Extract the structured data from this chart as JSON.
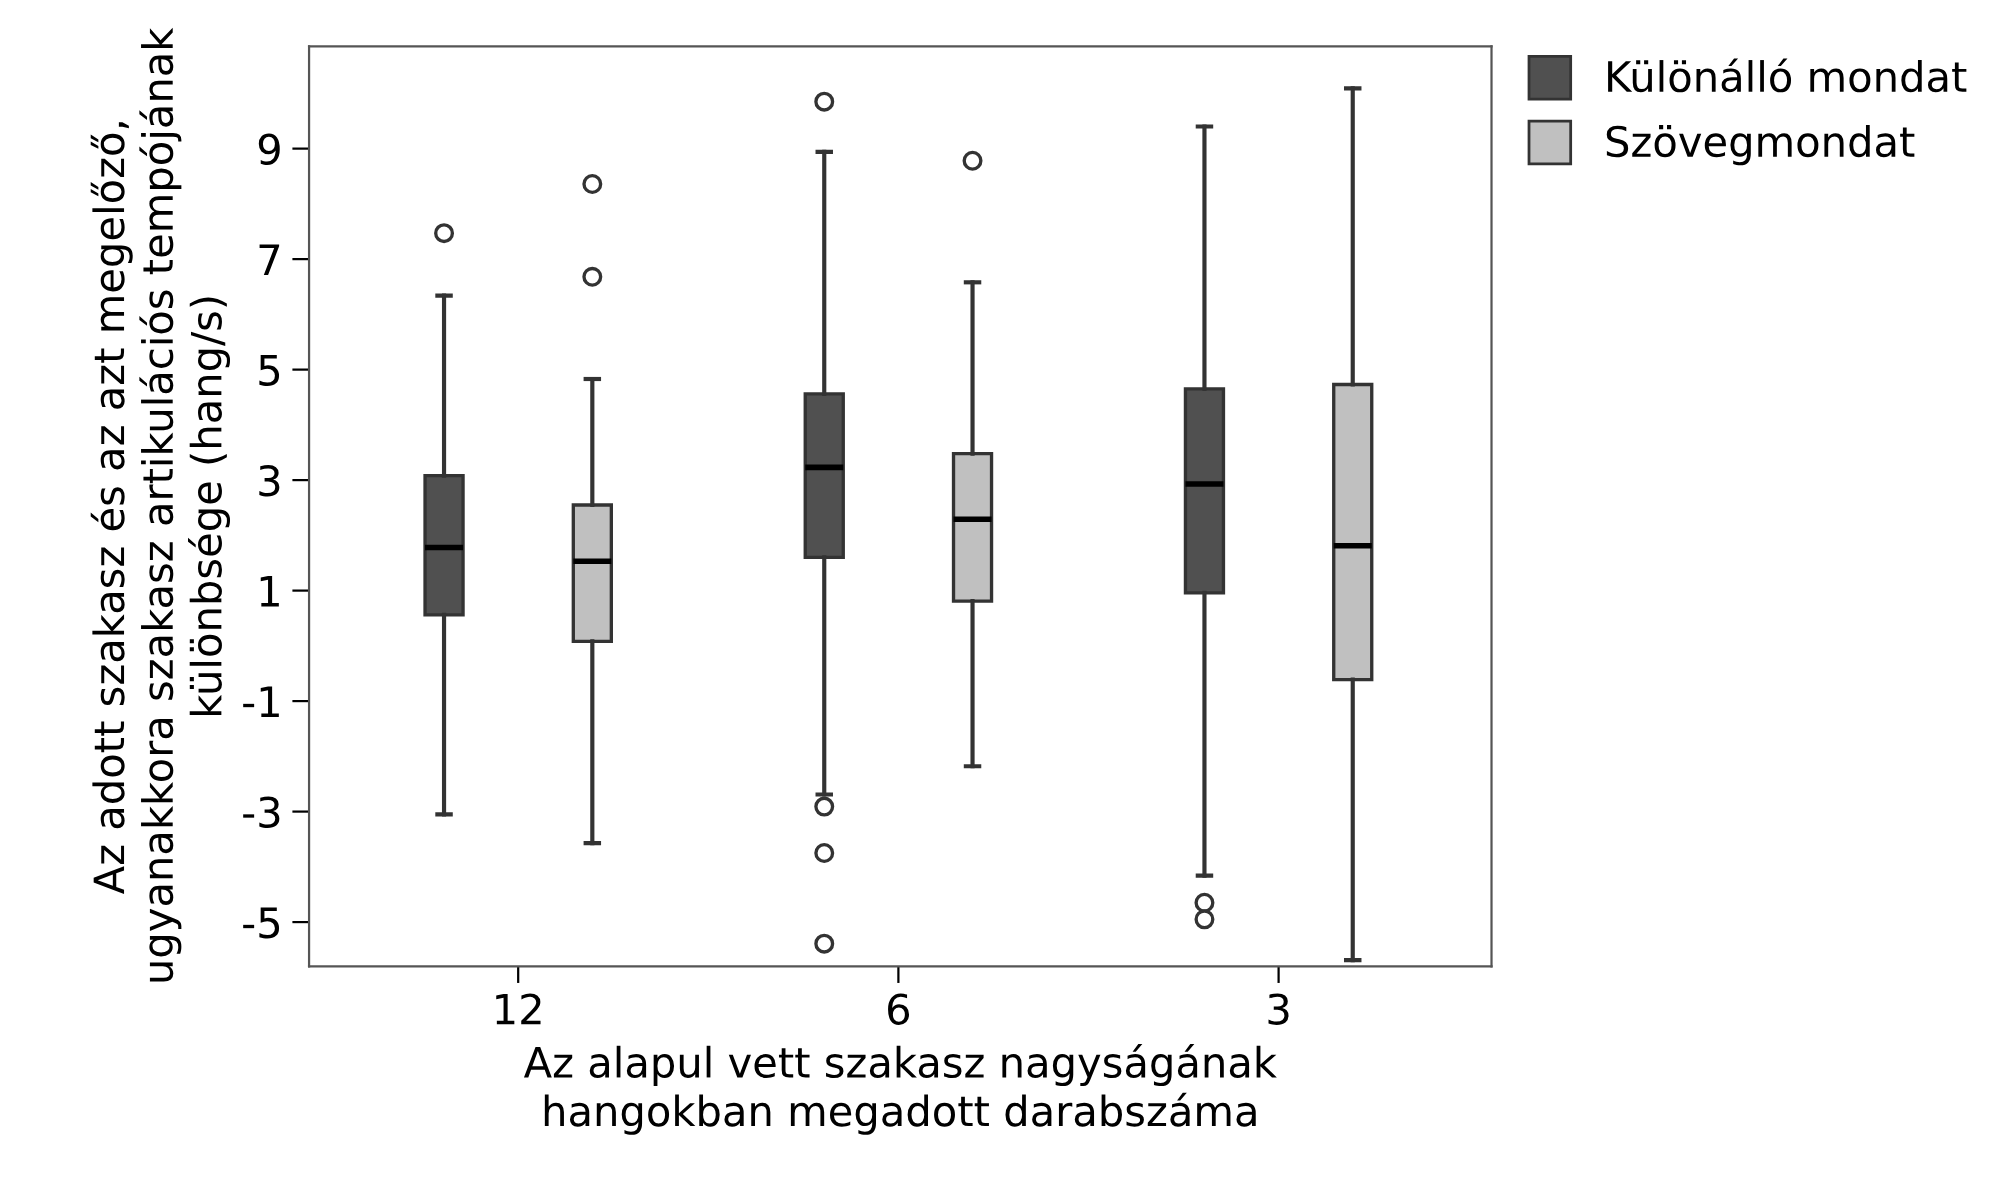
{
  "chart_data": {
    "type": "box",
    "xlabel": "Az alapul vett szakasz nagyságának\nhangokban megadott darabszáma",
    "ylabel": "Az adott szakasz és az azt megelőző,\nugyanakkora szakasz artikulációs tempójának\nkülönbsége (hang/s)",
    "categories": [
      "12",
      "6",
      "3"
    ],
    "ylim": [
      -5.8,
      10.85
    ],
    "yticks": [
      -5,
      -3,
      -1,
      1,
      3,
      5,
      7,
      9
    ],
    "grid": false,
    "legend": "top right",
    "series": [
      {
        "name": "Különálló mondat",
        "color": "#505050",
        "boxes": [
          {
            "low": -3.05,
            "q1": 0.56,
            "median": 1.78,
            "q3": 3.08,
            "high": 6.34,
            "outliers": [
              7.47
            ]
          },
          {
            "low": -2.69,
            "q1": 1.6,
            "median": 3.23,
            "q3": 4.56,
            "high": 8.94,
            "outliers": [
              9.85,
              -2.91,
              -3.75,
              -5.39
            ]
          },
          {
            "low": -4.16,
            "q1": 0.96,
            "median": 2.93,
            "q3": 4.65,
            "high": 9.4,
            "outliers": [
              -4.65,
              -4.95
            ]
          }
        ]
      },
      {
        "name": "Szövegmondat",
        "color": "#c0c0c0",
        "boxes": [
          {
            "low": -3.57,
            "q1": 0.08,
            "median": 1.53,
            "q3": 2.55,
            "high": 4.83,
            "outliers": [
              8.36,
              6.68
            ]
          },
          {
            "low": -2.18,
            "q1": 0.81,
            "median": 2.29,
            "q3": 3.48,
            "high": 6.58,
            "outliers": [
              8.78
            ]
          },
          {
            "low": -5.69,
            "q1": -0.61,
            "median": 1.81,
            "q3": 4.73,
            "high": 10.09
          }
        ]
      }
    ]
  }
}
